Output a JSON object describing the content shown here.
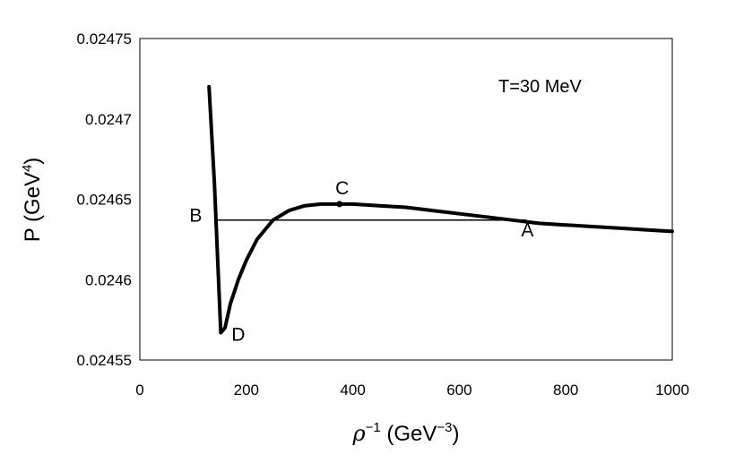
{
  "chart_data": {
    "type": "line",
    "title": "",
    "annotation": "T=30 MeV",
    "xlabel": {
      "base": "ρ",
      "sup": "−1",
      "unit": " (GeV",
      "unit_sup": "−3",
      "close": ")"
    },
    "ylabel": {
      "base": "P (GeV",
      "sup": "4",
      "close": ")"
    },
    "xlim": [
      0,
      1000
    ],
    "ylim": [
      0.02455,
      0.02475
    ],
    "x_ticks": [
      0,
      200,
      400,
      600,
      800,
      1000
    ],
    "x_tick_labels": [
      "0",
      "200",
      "400",
      "600",
      "800",
      "1000"
    ],
    "y_ticks": [
      0.02455,
      0.0246,
      0.02465,
      0.0247,
      0.02475
    ],
    "y_tick_labels": [
      "0.02455",
      "0.0246",
      "0.02465",
      "0.0247",
      "0.02475"
    ],
    "grid": false,
    "legend": "none",
    "series": [
      {
        "style": "thick",
        "color": "#000000",
        "x": [
          130,
          140,
          152,
          160,
          170,
          185,
          200,
          220,
          250,
          280,
          310,
          340,
          370,
          400,
          450,
          500,
          550,
          600,
          650,
          700,
          750,
          800,
          850,
          900,
          950,
          1000
        ],
        "y": [
          0.02472,
          0.02466,
          0.024567,
          0.02457,
          0.024585,
          0.0246,
          0.024612,
          0.024625,
          0.024637,
          0.024643,
          0.024646,
          0.024647,
          0.024647,
          0.024647,
          0.024646,
          0.024645,
          0.024643,
          0.024641,
          0.024639,
          0.024637,
          0.024635,
          0.024634,
          0.024633,
          0.024632,
          0.024631,
          0.02463
        ]
      },
      {
        "style": "thin",
        "color": "#000000",
        "x": [
          142,
          725
        ],
        "y": [
          0.024637,
          0.024637
        ]
      }
    ],
    "markers": [
      {
        "x": 375,
        "y": 0.024647
      }
    ],
    "point_labels": [
      {
        "text": "A",
        "x": 728,
        "y": 0.024627
      },
      {
        "text": "B",
        "x": 105,
        "y": 0.024636
      },
      {
        "text": "C",
        "x": 380,
        "y": 0.024653
      },
      {
        "text": "D",
        "x": 185,
        "y": 0.024562
      }
    ]
  }
}
